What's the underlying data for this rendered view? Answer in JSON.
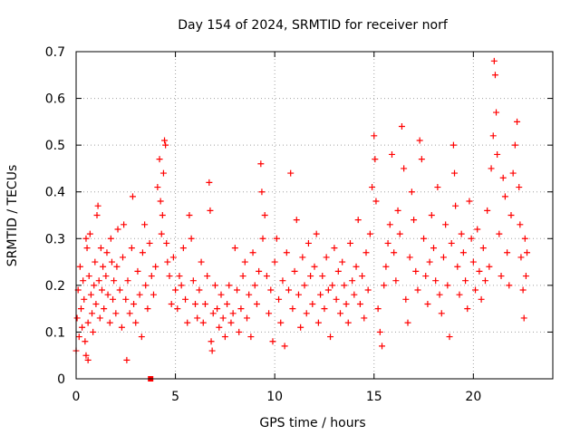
{
  "chart_data": {
    "type": "scatter",
    "title": "Day 154 of 2024, SRMTID for receiver norf",
    "xlabel": "GPS time / hours",
    "ylabel": "SRMTID / TECUs",
    "xlim": [
      0,
      24
    ],
    "ylim": [
      0,
      0.7
    ],
    "x_ticks": [
      0,
      5,
      10,
      15,
      20
    ],
    "x_tick_labels": [
      "0",
      "5",
      "10",
      "15",
      "20"
    ],
    "y_ticks": [
      0,
      0.1,
      0.2,
      0.3,
      0.4,
      0.5,
      0.6,
      0.7
    ],
    "y_tick_labels": [
      "0",
      "0.1",
      "0.2",
      "0.3",
      "0.4",
      "0.5",
      "0.6",
      "0.7"
    ],
    "grid": true,
    "marker": "+",
    "color": "#ff0000",
    "special_point": {
      "x": 3.75,
      "y": 0.0,
      "marker": "square"
    },
    "series": [
      {
        "name": "SRMTID",
        "points": [
          [
            0.0,
            0.06
          ],
          [
            0.05,
            0.13
          ],
          [
            0.1,
            0.19
          ],
          [
            0.15,
            0.09
          ],
          [
            0.2,
            0.24
          ],
          [
            0.25,
            0.15
          ],
          [
            0.3,
            0.11
          ],
          [
            0.35,
            0.21
          ],
          [
            0.4,
            0.17
          ],
          [
            0.45,
            0.08
          ],
          [
            0.5,
            0.05
          ],
          [
            0.5,
            0.3
          ],
          [
            0.55,
            0.28
          ],
          [
            0.6,
            0.12
          ],
          [
            0.6,
            0.04
          ],
          [
            0.65,
            0.22
          ],
          [
            0.7,
            0.31
          ],
          [
            0.75,
            0.18
          ],
          [
            0.8,
            0.14
          ],
          [
            0.85,
            0.1
          ],
          [
            0.9,
            0.2
          ],
          [
            0.95,
            0.25
          ],
          [
            1.0,
            0.16
          ],
          [
            1.05,
            0.35
          ],
          [
            1.1,
            0.37
          ],
          [
            1.15,
            0.21
          ],
          [
            1.2,
            0.13
          ],
          [
            1.25,
            0.28
          ],
          [
            1.3,
            0.19
          ],
          [
            1.35,
            0.24
          ],
          [
            1.4,
            0.15
          ],
          [
            1.5,
            0.22
          ],
          [
            1.55,
            0.27
          ],
          [
            1.6,
            0.18
          ],
          [
            1.7,
            0.12
          ],
          [
            1.75,
            0.3
          ],
          [
            1.8,
            0.25
          ],
          [
            1.85,
            0.17
          ],
          [
            1.9,
            0.21
          ],
          [
            2.0,
            0.14
          ],
          [
            2.05,
            0.24
          ],
          [
            2.1,
            0.32
          ],
          [
            2.2,
            0.19
          ],
          [
            2.3,
            0.11
          ],
          [
            2.35,
            0.26
          ],
          [
            2.4,
            0.33
          ],
          [
            2.5,
            0.17
          ],
          [
            2.55,
            0.04
          ],
          [
            2.6,
            0.21
          ],
          [
            2.7,
            0.14
          ],
          [
            2.8,
            0.28
          ],
          [
            2.85,
            0.39
          ],
          [
            2.9,
            0.16
          ],
          [
            3.0,
            0.12
          ],
          [
            3.1,
            0.23
          ],
          [
            3.2,
            0.18
          ],
          [
            3.3,
            0.09
          ],
          [
            3.35,
            0.27
          ],
          [
            3.45,
            0.33
          ],
          [
            3.5,
            0.2
          ],
          [
            3.6,
            0.15
          ],
          [
            3.7,
            0.29
          ],
          [
            3.8,
            0.22
          ],
          [
            3.9,
            0.18
          ],
          [
            4.0,
            0.24
          ],
          [
            4.1,
            0.41
          ],
          [
            4.2,
            0.47
          ],
          [
            4.25,
            0.38
          ],
          [
            4.3,
            0.31
          ],
          [
            4.35,
            0.35
          ],
          [
            4.4,
            0.44
          ],
          [
            4.45,
            0.51
          ],
          [
            4.5,
            0.5
          ],
          [
            4.55,
            0.29
          ],
          [
            4.6,
            0.25
          ],
          [
            4.7,
            0.22
          ],
          [
            4.8,
            0.16
          ],
          [
            4.9,
            0.26
          ],
          [
            5.0,
            0.19
          ],
          [
            5.1,
            0.15
          ],
          [
            5.2,
            0.22
          ],
          [
            5.3,
            0.2
          ],
          [
            5.4,
            0.28
          ],
          [
            5.5,
            0.17
          ],
          [
            5.6,
            0.12
          ],
          [
            5.7,
            0.35
          ],
          [
            5.8,
            0.3
          ],
          [
            5.9,
            0.21
          ],
          [
            6.0,
            0.16
          ],
          [
            6.1,
            0.13
          ],
          [
            6.2,
            0.19
          ],
          [
            6.3,
            0.25
          ],
          [
            6.4,
            0.12
          ],
          [
            6.5,
            0.16
          ],
          [
            6.6,
            0.22
          ],
          [
            6.7,
            0.42
          ],
          [
            6.75,
            0.36
          ],
          [
            6.8,
            0.08
          ],
          [
            6.85,
            0.06
          ],
          [
            6.9,
            0.14
          ],
          [
            7.0,
            0.2
          ],
          [
            7.1,
            0.15
          ],
          [
            7.2,
            0.11
          ],
          [
            7.3,
            0.18
          ],
          [
            7.4,
            0.13
          ],
          [
            7.5,
            0.09
          ],
          [
            7.6,
            0.16
          ],
          [
            7.7,
            0.2
          ],
          [
            7.8,
            0.12
          ],
          [
            7.9,
            0.14
          ],
          [
            8.0,
            0.28
          ],
          [
            8.1,
            0.19
          ],
          [
            8.2,
            0.1
          ],
          [
            8.3,
            0.15
          ],
          [
            8.4,
            0.22
          ],
          [
            8.5,
            0.25
          ],
          [
            8.6,
            0.13
          ],
          [
            8.7,
            0.18
          ],
          [
            8.8,
            0.09
          ],
          [
            8.9,
            0.27
          ],
          [
            9.0,
            0.2
          ],
          [
            9.1,
            0.16
          ],
          [
            9.2,
            0.23
          ],
          [
            9.3,
            0.46
          ],
          [
            9.35,
            0.4
          ],
          [
            9.4,
            0.3
          ],
          [
            9.5,
            0.35
          ],
          [
            9.6,
            0.22
          ],
          [
            9.7,
            0.14
          ],
          [
            9.8,
            0.19
          ],
          [
            9.9,
            0.08
          ],
          [
            10.0,
            0.25
          ],
          [
            10.1,
            0.3
          ],
          [
            10.2,
            0.17
          ],
          [
            10.3,
            0.12
          ],
          [
            10.4,
            0.21
          ],
          [
            10.5,
            0.07
          ],
          [
            10.6,
            0.27
          ],
          [
            10.7,
            0.19
          ],
          [
            10.8,
            0.44
          ],
          [
            10.9,
            0.15
          ],
          [
            11.0,
            0.23
          ],
          [
            11.1,
            0.34
          ],
          [
            11.2,
            0.18
          ],
          [
            11.3,
            0.11
          ],
          [
            11.4,
            0.26
          ],
          [
            11.5,
            0.2
          ],
          [
            11.6,
            0.14
          ],
          [
            11.7,
            0.29
          ],
          [
            11.8,
            0.22
          ],
          [
            11.9,
            0.16
          ],
          [
            12.0,
            0.24
          ],
          [
            12.1,
            0.31
          ],
          [
            12.2,
            0.12
          ],
          [
            12.3,
            0.18
          ],
          [
            12.4,
            0.22
          ],
          [
            12.5,
            0.15
          ],
          [
            12.6,
            0.26
          ],
          [
            12.7,
            0.19
          ],
          [
            12.8,
            0.09
          ],
          [
            12.9,
            0.2
          ],
          [
            13.0,
            0.28
          ],
          [
            13.1,
            0.17
          ],
          [
            13.2,
            0.23
          ],
          [
            13.3,
            0.14
          ],
          [
            13.4,
            0.25
          ],
          [
            13.5,
            0.2
          ],
          [
            13.6,
            0.16
          ],
          [
            13.7,
            0.12
          ],
          [
            13.8,
            0.29
          ],
          [
            13.9,
            0.21
          ],
          [
            14.0,
            0.18
          ],
          [
            14.1,
            0.24
          ],
          [
            14.2,
            0.34
          ],
          [
            14.3,
            0.16
          ],
          [
            14.4,
            0.22
          ],
          [
            14.5,
            0.13
          ],
          [
            14.6,
            0.27
          ],
          [
            14.7,
            0.19
          ],
          [
            14.8,
            0.31
          ],
          [
            14.9,
            0.41
          ],
          [
            15.0,
            0.52
          ],
          [
            15.05,
            0.47
          ],
          [
            15.1,
            0.38
          ],
          [
            15.2,
            0.15
          ],
          [
            15.3,
            0.1
          ],
          [
            15.4,
            0.07
          ],
          [
            15.5,
            0.2
          ],
          [
            15.6,
            0.24
          ],
          [
            15.7,
            0.29
          ],
          [
            15.8,
            0.33
          ],
          [
            15.9,
            0.48
          ],
          [
            16.0,
            0.27
          ],
          [
            16.1,
            0.21
          ],
          [
            16.2,
            0.36
          ],
          [
            16.3,
            0.31
          ],
          [
            16.4,
            0.54
          ],
          [
            16.5,
            0.45
          ],
          [
            16.6,
            0.17
          ],
          [
            16.7,
            0.12
          ],
          [
            16.8,
            0.26
          ],
          [
            16.9,
            0.4
          ],
          [
            17.0,
            0.34
          ],
          [
            17.1,
            0.23
          ],
          [
            17.2,
            0.19
          ],
          [
            17.3,
            0.51
          ],
          [
            17.4,
            0.47
          ],
          [
            17.5,
            0.3
          ],
          [
            17.6,
            0.22
          ],
          [
            17.7,
            0.16
          ],
          [
            17.8,
            0.25
          ],
          [
            17.9,
            0.35
          ],
          [
            18.0,
            0.28
          ],
          [
            18.1,
            0.21
          ],
          [
            18.2,
            0.41
          ],
          [
            18.3,
            0.18
          ],
          [
            18.4,
            0.14
          ],
          [
            18.5,
            0.26
          ],
          [
            18.6,
            0.33
          ],
          [
            18.7,
            0.2
          ],
          [
            18.8,
            0.09
          ],
          [
            18.9,
            0.29
          ],
          [
            19.0,
            0.5
          ],
          [
            19.05,
            0.44
          ],
          [
            19.1,
            0.37
          ],
          [
            19.2,
            0.24
          ],
          [
            19.3,
            0.18
          ],
          [
            19.4,
            0.31
          ],
          [
            19.5,
            0.27
          ],
          [
            19.6,
            0.21
          ],
          [
            19.7,
            0.15
          ],
          [
            19.8,
            0.38
          ],
          [
            19.9,
            0.3
          ],
          [
            20.0,
            0.25
          ],
          [
            20.1,
            0.19
          ],
          [
            20.2,
            0.32
          ],
          [
            20.3,
            0.23
          ],
          [
            20.4,
            0.17
          ],
          [
            20.5,
            0.28
          ],
          [
            20.6,
            0.21
          ],
          [
            20.7,
            0.36
          ],
          [
            20.8,
            0.24
          ],
          [
            20.9,
            0.45
          ],
          [
            21.0,
            0.52
          ],
          [
            21.05,
            0.68
          ],
          [
            21.1,
            0.65
          ],
          [
            21.15,
            0.57
          ],
          [
            21.2,
            0.48
          ],
          [
            21.3,
            0.31
          ],
          [
            21.4,
            0.22
          ],
          [
            21.5,
            0.43
          ],
          [
            21.6,
            0.39
          ],
          [
            21.7,
            0.27
          ],
          [
            21.8,
            0.2
          ],
          [
            21.9,
            0.35
          ],
          [
            22.0,
            0.44
          ],
          [
            22.1,
            0.5
          ],
          [
            22.2,
            0.55
          ],
          [
            22.3,
            0.41
          ],
          [
            22.35,
            0.33
          ],
          [
            22.4,
            0.26
          ],
          [
            22.5,
            0.19
          ],
          [
            22.55,
            0.13
          ],
          [
            22.6,
            0.3
          ],
          [
            22.65,
            0.22
          ],
          [
            22.7,
            0.27
          ]
        ]
      }
    ]
  }
}
